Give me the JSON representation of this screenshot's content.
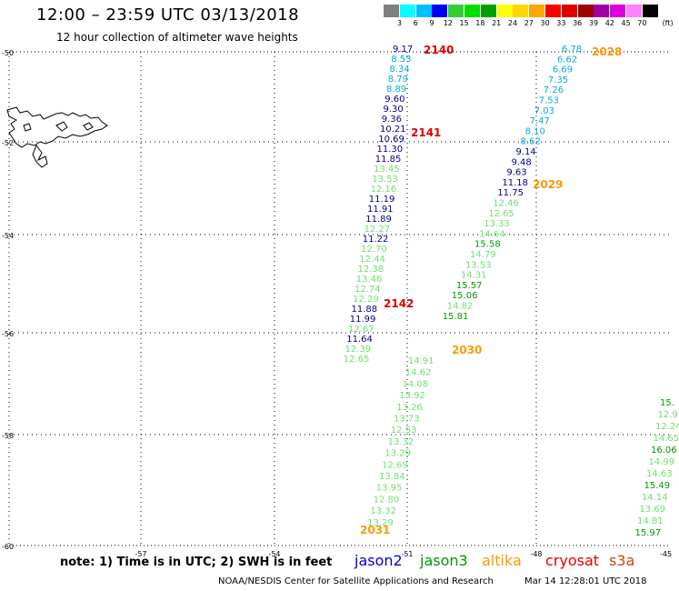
{
  "title": "12:00 – 23:59 UTC 03/13/2018",
  "subtitle": "12 hour collection of altimeter wave heights",
  "colorbar": {
    "unit_label": "(ft)",
    "colors": [
      "#7f7f7f",
      "#00ffff",
      "#00bfff",
      "#0000ff",
      "#32cd32",
      "#00dd00",
      "#00a000",
      "#ffff00",
      "#ffd700",
      "#ffa500",
      "#ff0000",
      "#dd0000",
      "#a00000",
      "#a000a0",
      "#dd00dd",
      "#ff80ff",
      "#000000"
    ],
    "labels": [
      "3",
      "6",
      "9",
      "12",
      "15",
      "18",
      "21",
      "24",
      "27",
      "30",
      "33",
      "36",
      "39",
      "42",
      "45",
      "70"
    ]
  },
  "axes": {
    "lat_labels": [
      "-50",
      "-52",
      "-54",
      "-56",
      "-58",
      "-60"
    ],
    "lon_labels": [
      "-57",
      "-54",
      "-51",
      "-48",
      "-45"
    ]
  },
  "passes": [
    {
      "id": "2140",
      "color": "#e00000"
    },
    {
      "id": "2141",
      "color": "#e00000"
    },
    {
      "id": "2142",
      "color": "#e00000"
    },
    {
      "id": "2028",
      "color": "#ff9900"
    },
    {
      "id": "2029",
      "color": "#ff9900"
    },
    {
      "id": "2030",
      "color": "#ff9900"
    },
    {
      "id": "2031",
      "color": "#ff9900"
    }
  ],
  "tracks": [
    {
      "name": "track-2140",
      "values": [
        {
          "v": "9.17",
          "c": "#00008b"
        },
        {
          "v": "8.53",
          "c": "#00aadd"
        },
        {
          "v": "8.34",
          "c": "#00aadd"
        },
        {
          "v": "8.79",
          "c": "#00aadd"
        },
        {
          "v": "8.89",
          "c": "#00aadd"
        },
        {
          "v": "9.60",
          "c": "#00008b"
        },
        {
          "v": "9.30",
          "c": "#00008b"
        },
        {
          "v": "9.36",
          "c": "#00008b"
        },
        {
          "v": "10.21",
          "c": "#00008b"
        },
        {
          "v": "10.69",
          "c": "#00008b"
        },
        {
          "v": "11.30",
          "c": "#00008b"
        },
        {
          "v": "11.85",
          "c": "#00008b"
        },
        {
          "v": "13.45",
          "c": "#6fe06f"
        },
        {
          "v": "13.53",
          "c": "#6fe06f"
        },
        {
          "v": "12.16",
          "c": "#6fe06f"
        },
        {
          "v": "11.19",
          "c": "#00008b"
        },
        {
          "v": "11.91",
          "c": "#00008b"
        },
        {
          "v": "11.89",
          "c": "#00008b"
        },
        {
          "v": "12.27",
          "c": "#6fe06f"
        },
        {
          "v": "11.22",
          "c": "#00008b"
        },
        {
          "v": "12.70",
          "c": "#6fe06f"
        },
        {
          "v": "12.44",
          "c": "#6fe06f"
        },
        {
          "v": "12.38",
          "c": "#6fe06f"
        },
        {
          "v": "13.46",
          "c": "#6fe06f"
        },
        {
          "v": "12.74",
          "c": "#6fe06f"
        },
        {
          "v": "12.29",
          "c": "#6fe06f"
        },
        {
          "v": "11.88",
          "c": "#00008b"
        },
        {
          "v": "11.99",
          "c": "#00008b"
        },
        {
          "v": "12.67",
          "c": "#6fe06f"
        },
        {
          "v": "11.64",
          "c": "#00008b"
        },
        {
          "v": "12.39",
          "c": "#6fe06f"
        },
        {
          "v": "12.65",
          "c": "#6fe06f"
        }
      ]
    },
    {
      "name": "track-2028",
      "values": [
        {
          "v": "6.78",
          "c": "#00aadd"
        },
        {
          "v": "6.62",
          "c": "#00aadd"
        },
        {
          "v": "6.69",
          "c": "#00aadd"
        },
        {
          "v": "7.35",
          "c": "#00aadd"
        },
        {
          "v": "7.26",
          "c": "#00aadd"
        },
        {
          "v": "7.53",
          "c": "#00aadd"
        },
        {
          "v": "7.03",
          "c": "#00aadd"
        },
        {
          "v": "7.47",
          "c": "#00aadd"
        },
        {
          "v": "8.10",
          "c": "#00aadd"
        },
        {
          "v": "8.62",
          "c": "#00aadd"
        },
        {
          "v": "9.14",
          "c": "#00008b"
        },
        {
          "v": "9.48",
          "c": "#00008b"
        },
        {
          "v": "9.63",
          "c": "#00008b"
        },
        {
          "v": "11.18",
          "c": "#00008b"
        },
        {
          "v": "11.75",
          "c": "#00008b"
        },
        {
          "v": "12.46",
          "c": "#6fe06f"
        },
        {
          "v": "12.65",
          "c": "#6fe06f"
        },
        {
          "v": "13.33",
          "c": "#6fe06f"
        },
        {
          "v": "14.64",
          "c": "#6fe06f"
        },
        {
          "v": "15.58",
          "c": "#009900"
        },
        {
          "v": "14.79",
          "c": "#6fe06f"
        },
        {
          "v": "13.53",
          "c": "#6fe06f"
        },
        {
          "v": "14.31",
          "c": "#6fe06f"
        },
        {
          "v": "15.57",
          "c": "#009900"
        },
        {
          "v": "15.06",
          "c": "#009900"
        },
        {
          "v": "14.82",
          "c": "#6fe06f"
        },
        {
          "v": "15.81",
          "c": "#009900"
        }
      ]
    },
    {
      "name": "track-2030",
      "values": [
        {
          "v": "14.91",
          "c": "#6fe06f"
        },
        {
          "v": "14.62",
          "c": "#6fe06f"
        },
        {
          "v": "14.08",
          "c": "#6fe06f"
        },
        {
          "v": "13.92",
          "c": "#6fe06f"
        },
        {
          "v": "13.26",
          "c": "#6fe06f"
        },
        {
          "v": "13.73",
          "c": "#6fe06f"
        },
        {
          "v": "12.53",
          "c": "#6fe06f"
        },
        {
          "v": "13.32",
          "c": "#6fe06f"
        },
        {
          "v": "13.29",
          "c": "#6fe06f"
        },
        {
          "v": "12.69",
          "c": "#6fe06f"
        },
        {
          "v": "13.84",
          "c": "#6fe06f"
        },
        {
          "v": "13.95",
          "c": "#6fe06f"
        },
        {
          "v": "12.80",
          "c": "#6fe06f"
        },
        {
          "v": "13.32",
          "c": "#6fe06f"
        },
        {
          "v": "13.29",
          "c": "#6fe06f"
        }
      ]
    },
    {
      "name": "track-east",
      "values": [
        {
          "v": "15.",
          "c": "#009900"
        },
        {
          "v": "12.9",
          "c": "#6fe06f"
        },
        {
          "v": "12.24",
          "c": "#6fe06f"
        },
        {
          "v": "14.65",
          "c": "#6fe06f"
        },
        {
          "v": "16.06",
          "c": "#009900"
        },
        {
          "v": "14.99",
          "c": "#6fe06f"
        },
        {
          "v": "14.63",
          "c": "#6fe06f"
        },
        {
          "v": "15.49",
          "c": "#009900"
        },
        {
          "v": "14.14",
          "c": "#6fe06f"
        },
        {
          "v": "13.69",
          "c": "#6fe06f"
        },
        {
          "v": "14.81",
          "c": "#6fe06f"
        },
        {
          "v": "15.97",
          "c": "#009900"
        }
      ]
    }
  ],
  "footer": {
    "note": "note:  1) Time is in UTC;  2) SWH is in feet",
    "satellites": [
      {
        "name": "jason2",
        "color": "#0000cc"
      },
      {
        "name": "jason3",
        "color": "#009900"
      },
      {
        "name": "altika",
        "color": "#ff9900"
      },
      {
        "name": "cryosat",
        "color": "#e00000"
      },
      {
        "name": "s3a",
        "color": "#cc4400"
      }
    ],
    "credit": "NOAA/NESDIS Center for Satellite Applications and Research",
    "timestamp": "Mar 14 12:28:01 UTC 2018"
  }
}
